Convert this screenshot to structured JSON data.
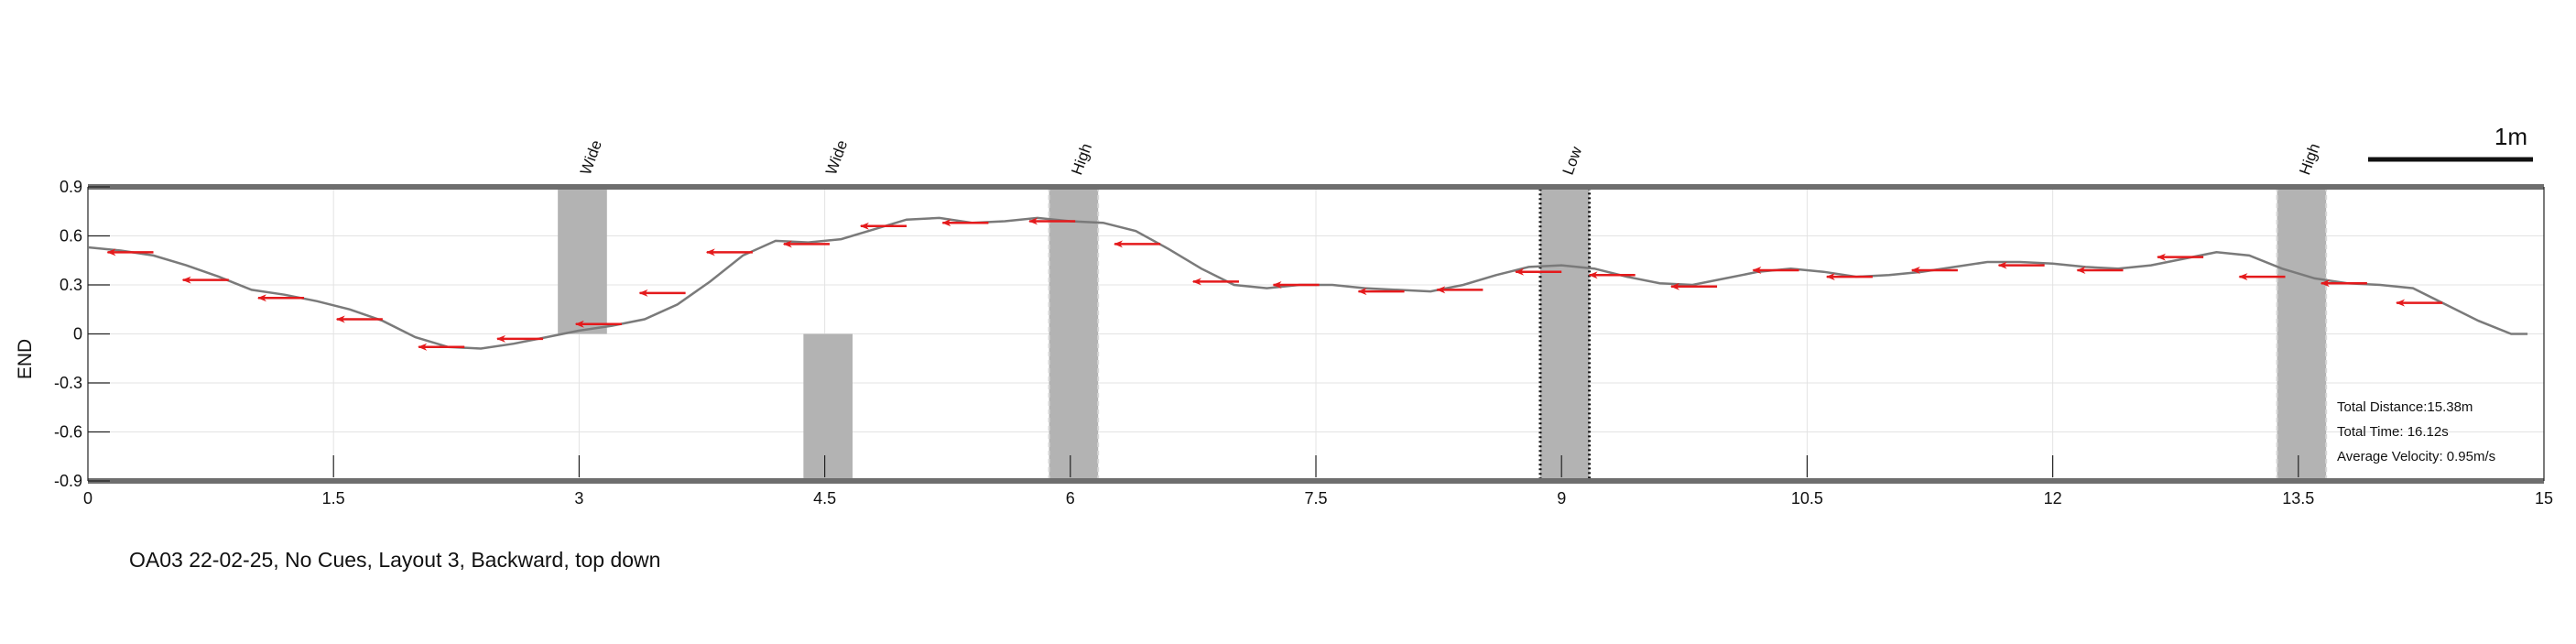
{
  "caption": "OA03 22-02-25, No Cues, Layout 3, Backward, top down",
  "chart_data": {
    "type": "line",
    "title": "",
    "xlabel": "",
    "ylabel": "END",
    "xlim": [
      0,
      15
    ],
    "ylim": [
      -0.9,
      0.9
    ],
    "grid": true,
    "x_ticks": [
      "0",
      "1.5",
      "3",
      "4.5",
      "6",
      "7.5",
      "9",
      "10.5",
      "12",
      "13.5",
      "15"
    ],
    "y_ticks": [
      "0.9",
      "0.6",
      "0.3",
      "0",
      "-0.3",
      "-0.6",
      "-0.9"
    ],
    "scale_bar": {
      "label": "1m",
      "length": 1
    },
    "obstacles": [
      {
        "label": "Wide",
        "x0": 2.87,
        "x1": 3.17,
        "y0": 0.0,
        "y1": 0.9,
        "style": "solid"
      },
      {
        "label": "Wide",
        "x0": 4.37,
        "x1": 4.67,
        "y0": -0.9,
        "y1": 0.0,
        "style": "solid"
      },
      {
        "label": "High",
        "x0": 5.87,
        "x1": 6.17,
        "y0": -0.9,
        "y1": 0.9,
        "style": "dashed"
      },
      {
        "label": "Low",
        "x0": 8.87,
        "x1": 9.17,
        "y0": -0.9,
        "y1": 0.9,
        "style": "dotted"
      },
      {
        "label": "High",
        "x0": 13.37,
        "x1": 13.67,
        "y0": -0.9,
        "y1": 0.9,
        "style": "dashed"
      }
    ],
    "series": [
      {
        "color": "#7a7a7a",
        "x": [
          0,
          0.2,
          0.4,
          0.6,
          0.8,
          1.0,
          1.2,
          1.4,
          1.6,
          1.8,
          2.0,
          2.2,
          2.4,
          2.6,
          2.8,
          3.0,
          3.2,
          3.4,
          3.6,
          3.8,
          4.0,
          4.2,
          4.4,
          4.6,
          4.8,
          5.0,
          5.2,
          5.4,
          5.6,
          5.8,
          6.0,
          6.2,
          6.4,
          6.6,
          6.8,
          7.0,
          7.2,
          7.4,
          7.6,
          7.8,
          8.0,
          8.2,
          8.4,
          8.6,
          8.8,
          9.0,
          9.2,
          9.4,
          9.6,
          9.8,
          10.0,
          10.2,
          10.4,
          10.6,
          10.8,
          11.0,
          11.2,
          11.4,
          11.6,
          11.8,
          12.0,
          12.2,
          12.4,
          12.6,
          12.8,
          13.0,
          13.2,
          13.4,
          13.6,
          13.8,
          14.0,
          14.2,
          14.4,
          14.6,
          14.8,
          14.9
        ],
        "y": [
          0.53,
          0.51,
          0.48,
          0.42,
          0.35,
          0.27,
          0.24,
          0.2,
          0.15,
          0.08,
          -0.02,
          -0.08,
          -0.09,
          -0.06,
          -0.02,
          0.02,
          0.05,
          0.09,
          0.18,
          0.32,
          0.48,
          0.57,
          0.56,
          0.58,
          0.64,
          0.7,
          0.71,
          0.68,
          0.69,
          0.71,
          0.69,
          0.68,
          0.63,
          0.52,
          0.4,
          0.3,
          0.28,
          0.3,
          0.3,
          0.28,
          0.27,
          0.26,
          0.3,
          0.36,
          0.41,
          0.42,
          0.4,
          0.35,
          0.31,
          0.3,
          0.34,
          0.38,
          0.4,
          0.38,
          0.35,
          0.36,
          0.38,
          0.41,
          0.44,
          0.44,
          0.43,
          0.41,
          0.4,
          0.42,
          0.46,
          0.5,
          0.48,
          0.4,
          0.34,
          0.31,
          0.3,
          0.28,
          0.18,
          0.08,
          0.0,
          0.0
        ]
      }
    ],
    "arrows": {
      "color": "#e41a1c",
      "dx": -0.28,
      "positions": [
        [
          0.4,
          0.5
        ],
        [
          0.86,
          0.33
        ],
        [
          1.32,
          0.22
        ],
        [
          1.8,
          0.09
        ],
        [
          2.3,
          -0.08
        ],
        [
          2.78,
          -0.03
        ],
        [
          3.26,
          0.06
        ],
        [
          3.65,
          0.25
        ],
        [
          4.06,
          0.5
        ],
        [
          4.53,
          0.55
        ],
        [
          5.0,
          0.66
        ],
        [
          5.5,
          0.68
        ],
        [
          6.03,
          0.69
        ],
        [
          6.55,
          0.55
        ],
        [
          7.03,
          0.32
        ],
        [
          7.52,
          0.3
        ],
        [
          8.04,
          0.26
        ],
        [
          8.52,
          0.27
        ],
        [
          9.0,
          0.38
        ],
        [
          9.45,
          0.36
        ],
        [
          9.95,
          0.29
        ],
        [
          10.45,
          0.39
        ],
        [
          10.9,
          0.35
        ],
        [
          11.42,
          0.39
        ],
        [
          11.95,
          0.42
        ],
        [
          12.43,
          0.39
        ],
        [
          12.92,
          0.47
        ],
        [
          13.42,
          0.35
        ],
        [
          13.92,
          0.31
        ],
        [
          14.38,
          0.19
        ]
      ]
    },
    "annotations": [
      "Total Distance:15.38m",
      "Total Time: 16.12s",
      "Average Velocity: 0.95m/s"
    ]
  }
}
